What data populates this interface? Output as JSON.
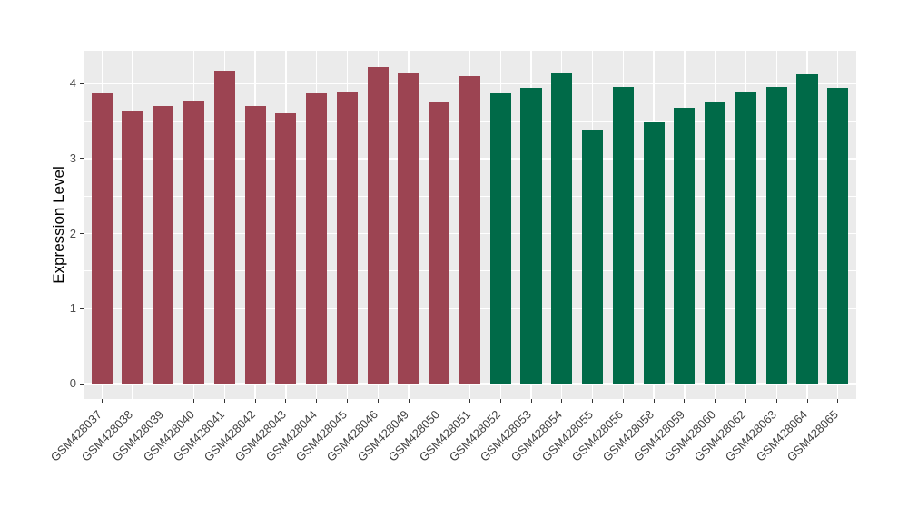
{
  "chart_data": {
    "type": "bar",
    "title": "",
    "xlabel": "",
    "ylabel": "Expression Level",
    "ylim": [
      0,
      4.44
    ],
    "yticks": [
      0,
      1,
      2,
      3,
      4
    ],
    "minor_gridlines": [
      0.5,
      1.5,
      2.5,
      3.5
    ],
    "grid": "on",
    "legend_position": "none",
    "categories": [
      "GSM428037",
      "GSM428038",
      "GSM428039",
      "GSM428040",
      "GSM428041",
      "GSM428042",
      "GSM428043",
      "GSM428044",
      "GSM428045",
      "GSM428046",
      "GSM428049",
      "GSM428050",
      "GSM428051",
      "GSM428052",
      "GSM428053",
      "GSM428054",
      "GSM428055",
      "GSM428056",
      "GSM428058",
      "GSM428059",
      "GSM428060",
      "GSM428062",
      "GSM428063",
      "GSM428064",
      "GSM428065"
    ],
    "values": [
      3.87,
      3.64,
      3.7,
      3.77,
      4.17,
      3.7,
      3.6,
      3.88,
      3.9,
      4.22,
      4.15,
      3.76,
      4.1,
      3.87,
      3.94,
      4.15,
      3.39,
      3.95,
      3.5,
      3.68,
      3.75,
      3.89,
      3.95,
      4.12,
      3.94
    ],
    "bar_groups": [
      "A",
      "A",
      "A",
      "A",
      "A",
      "A",
      "A",
      "A",
      "A",
      "A",
      "A",
      "A",
      "A",
      "B",
      "B",
      "B",
      "B",
      "B",
      "B",
      "B",
      "B",
      "B",
      "B",
      "B",
      "B"
    ],
    "group_colors": {
      "A": "#9C4452",
      "B": "#006A48"
    },
    "colors": {
      "panel_background": "#EBEBEB",
      "gridline": "#FFFFFF",
      "page_background": "#FFFFFF",
      "tick_mark": "#333333",
      "axis_text": "#4D4D4D",
      "axis_title": "#000000"
    }
  }
}
